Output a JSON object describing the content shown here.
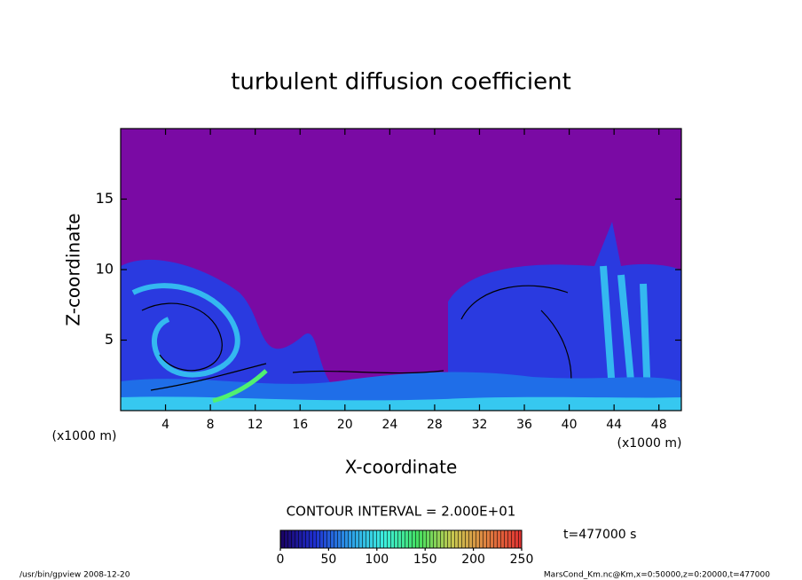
{
  "chart_data": {
    "type": "contour",
    "title": "turbulent diffusion coefficient",
    "xlabel": "X-coordinate",
    "ylabel": "Z-coordinate",
    "xunit": "(x1000 m)",
    "yunit": "(x1000 m)",
    "xlim": [
      0,
      50
    ],
    "ylim": [
      0,
      20
    ],
    "xticks": [
      4,
      8,
      12,
      16,
      20,
      24,
      28,
      32,
      36,
      40,
      44,
      48
    ],
    "yticks": [
      5,
      10,
      15
    ],
    "contour_interval": "CONTOUR INTERVAL = 2.000E+01",
    "time_label": "t=477000 s",
    "footer_left": "/usr/bin/gpview  2008-12-20",
    "footer_right": "MarsCond_Km.nc@Km,x=0:50000,z=0:20000,t=477000",
    "colorbar": {
      "lim": [
        0,
        250
      ],
      "ticks": [
        0,
        50,
        100,
        150,
        200,
        250
      ],
      "colors": [
        "#1a0060",
        "#1e2fd0",
        "#2c9be8",
        "#3df0e0",
        "#44e060",
        "#c8c850",
        "#e08040",
        "#e03030"
      ]
    }
  }
}
